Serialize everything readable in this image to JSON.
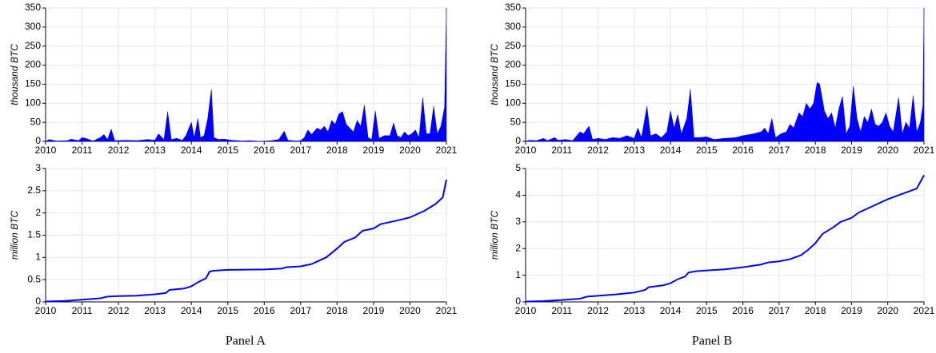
{
  "chart_data": [
    {
      "type": "area",
      "ylabel": "thousand BTC",
      "color": "#0000ff",
      "grid": true,
      "xlim": [
        2010,
        2021
      ],
      "xticks": [
        2010,
        2011,
        2012,
        2013,
        2014,
        2015,
        2016,
        2017,
        2018,
        2019,
        2020,
        2021
      ],
      "ylim": [
        0,
        350
      ],
      "yticks": [
        0,
        50,
        100,
        150,
        200,
        250,
        300,
        350
      ],
      "x": [
        2010.0,
        2010.1,
        2010.3,
        2010.6,
        2010.7,
        2010.9,
        2011.0,
        2011.1,
        2011.3,
        2011.5,
        2011.6,
        2011.7,
        2011.8,
        2011.9,
        2012.2,
        2012.5,
        2012.8,
        2013.0,
        2013.1,
        2013.25,
        2013.35,
        2013.45,
        2013.6,
        2013.75,
        2013.85,
        2014.0,
        2014.08,
        2014.18,
        2014.25,
        2014.35,
        2014.45,
        2014.55,
        2014.62,
        2014.75,
        2014.9,
        2015.1,
        2015.4,
        2015.6,
        2015.9,
        2016.2,
        2016.4,
        2016.55,
        2016.65,
        2016.9,
        2017.0,
        2017.1,
        2017.2,
        2017.3,
        2017.45,
        2017.55,
        2017.65,
        2017.75,
        2017.85,
        2017.95,
        2018.05,
        2018.15,
        2018.25,
        2018.35,
        2018.45,
        2018.55,
        2018.65,
        2018.75,
        2018.85,
        2018.95,
        2019.05,
        2019.15,
        2019.3,
        2019.45,
        2019.55,
        2019.65,
        2019.75,
        2019.85,
        2019.95,
        2020.05,
        2020.15,
        2020.25,
        2020.35,
        2020.45,
        2020.55,
        2020.65,
        2020.75,
        2020.85,
        2020.95,
        2021.0
      ],
      "values": [
        0,
        5,
        1,
        2,
        6,
        2,
        10,
        8,
        1,
        10,
        18,
        5,
        32,
        2,
        3,
        2,
        5,
        3,
        20,
        5,
        78,
        5,
        8,
        3,
        15,
        50,
        10,
        60,
        10,
        15,
        60,
        137,
        10,
        5,
        6,
        3,
        1,
        2,
        0,
        2,
        5,
        27,
        3,
        1,
        2,
        10,
        30,
        18,
        35,
        30,
        40,
        25,
        55,
        45,
        72,
        78,
        45,
        35,
        25,
        55,
        40,
        95,
        10,
        5,
        80,
        8,
        15,
        15,
        48,
        15,
        10,
        25,
        15,
        20,
        30,
        10,
        115,
        20,
        20,
        92,
        20,
        40,
        90,
        350
      ]
    },
    {
      "type": "line",
      "ylabel": "million BTC",
      "color": "#0000ff",
      "grid": true,
      "xlim": [
        2010,
        2021
      ],
      "xticks": [
        2010,
        2011,
        2012,
        2013,
        2014,
        2015,
        2016,
        2017,
        2018,
        2019,
        2020,
        2021
      ],
      "ylim": [
        0,
        3
      ],
      "yticks": [
        0,
        0.5,
        1,
        1.5,
        2,
        2.5,
        3
      ],
      "x": [
        2010,
        2010.5,
        2011,
        2011.5,
        2011.7,
        2012,
        2012.5,
        2013,
        2013.3,
        2013.4,
        2013.8,
        2014,
        2014.2,
        2014.4,
        2014.5,
        2014.6,
        2015,
        2016,
        2016.5,
        2016.6,
        2017,
        2017.3,
        2017.7,
        2018,
        2018.2,
        2018.5,
        2018.7,
        2019,
        2019.2,
        2019.6,
        2020,
        2020.4,
        2020.7,
        2020.9,
        2021
      ],
      "values": [
        0.01,
        0.02,
        0.05,
        0.08,
        0.12,
        0.13,
        0.14,
        0.17,
        0.2,
        0.27,
        0.3,
        0.35,
        0.45,
        0.53,
        0.68,
        0.7,
        0.72,
        0.73,
        0.75,
        0.78,
        0.8,
        0.85,
        1.0,
        1.2,
        1.35,
        1.45,
        1.6,
        1.65,
        1.75,
        1.82,
        1.9,
        2.05,
        2.2,
        2.35,
        2.75
      ]
    },
    {
      "type": "area",
      "ylabel": "thousand BTC",
      "color": "#0000ff",
      "grid": true,
      "xlim": [
        2010,
        2021
      ],
      "xticks": [
        2010,
        2011,
        2012,
        2013,
        2014,
        2015,
        2016,
        2017,
        2018,
        2019,
        2020,
        2021
      ],
      "ylim": [
        0,
        350
      ],
      "yticks": [
        0,
        50,
        100,
        150,
        200,
        250,
        300,
        350
      ],
      "x": [
        2010,
        2010.1,
        2010.3,
        2010.5,
        2010.6,
        2010.8,
        2010.9,
        2011.1,
        2011.3,
        2011.5,
        2011.6,
        2011.75,
        2011.85,
        2012.0,
        2012.2,
        2012.4,
        2012.6,
        2012.8,
        2013.0,
        2013.1,
        2013.2,
        2013.35,
        2013.45,
        2013.6,
        2013.75,
        2013.9,
        2014.0,
        2014.1,
        2014.2,
        2014.3,
        2014.45,
        2014.55,
        2014.65,
        2014.8,
        2015.0,
        2015.2,
        2015.5,
        2015.8,
        2016.0,
        2016.3,
        2016.5,
        2016.6,
        2016.7,
        2016.8,
        2016.9,
        2017.05,
        2017.2,
        2017.3,
        2017.4,
        2017.55,
        2017.65,
        2017.75,
        2017.85,
        2017.95,
        2018.05,
        2018.12,
        2018.25,
        2018.35,
        2018.45,
        2018.55,
        2018.65,
        2018.75,
        2018.85,
        2018.95,
        2019.05,
        2019.15,
        2019.25,
        2019.35,
        2019.45,
        2019.55,
        2019.65,
        2019.75,
        2019.85,
        2019.95,
        2020.05,
        2020.15,
        2020.3,
        2020.4,
        2020.5,
        2020.6,
        2020.7,
        2020.8,
        2020.9,
        2020.97,
        2021
      ],
      "values": [
        0,
        3,
        2,
        8,
        2,
        10,
        3,
        5,
        2,
        25,
        20,
        40,
        5,
        8,
        5,
        10,
        8,
        15,
        8,
        35,
        10,
        92,
        15,
        20,
        10,
        25,
        80,
        35,
        70,
        20,
        60,
        137,
        10,
        10,
        12,
        5,
        8,
        10,
        15,
        20,
        25,
        35,
        20,
        60,
        10,
        20,
        25,
        45,
        35,
        75,
        65,
        100,
        85,
        100,
        155,
        150,
        80,
        60,
        75,
        35,
        85,
        118,
        20,
        40,
        145,
        60,
        25,
        65,
        50,
        85,
        45,
        40,
        50,
        75,
        40,
        25,
        115,
        20,
        50,
        35,
        120,
        25,
        50,
        95,
        350
      ]
    },
    {
      "type": "line",
      "ylabel": "million BTC",
      "color": "#0000ff",
      "grid": true,
      "xlim": [
        2010,
        2021
      ],
      "xticks": [
        2010,
        2011,
        2012,
        2013,
        2014,
        2015,
        2016,
        2017,
        2018,
        2019,
        2020,
        2021
      ],
      "ylim": [
        0,
        5
      ],
      "yticks": [
        0,
        1,
        2,
        3,
        4,
        5
      ],
      "x": [
        2010,
        2010.5,
        2011,
        2011.5,
        2011.7,
        2012,
        2012.5,
        2013,
        2013.3,
        2013.4,
        2013.8,
        2014,
        2014.2,
        2014.4,
        2014.5,
        2014.7,
        2015,
        2015.5,
        2016,
        2016.5,
        2016.7,
        2017,
        2017.3,
        2017.6,
        2017.8,
        2018,
        2018.2,
        2018.5,
        2018.7,
        2019,
        2019.2,
        2019.6,
        2020,
        2020.2,
        2020.5,
        2020.8,
        2021
      ],
      "values": [
        0.01,
        0.03,
        0.07,
        0.12,
        0.2,
        0.23,
        0.28,
        0.35,
        0.45,
        0.55,
        0.62,
        0.7,
        0.85,
        0.95,
        1.1,
        1.15,
        1.18,
        1.22,
        1.3,
        1.4,
        1.48,
        1.52,
        1.6,
        1.75,
        1.95,
        2.2,
        2.55,
        2.8,
        3.0,
        3.15,
        3.35,
        3.6,
        3.85,
        3.95,
        4.1,
        4.25,
        4.75
      ]
    }
  ],
  "captions": [
    "Panel A",
    "Panel B"
  ]
}
